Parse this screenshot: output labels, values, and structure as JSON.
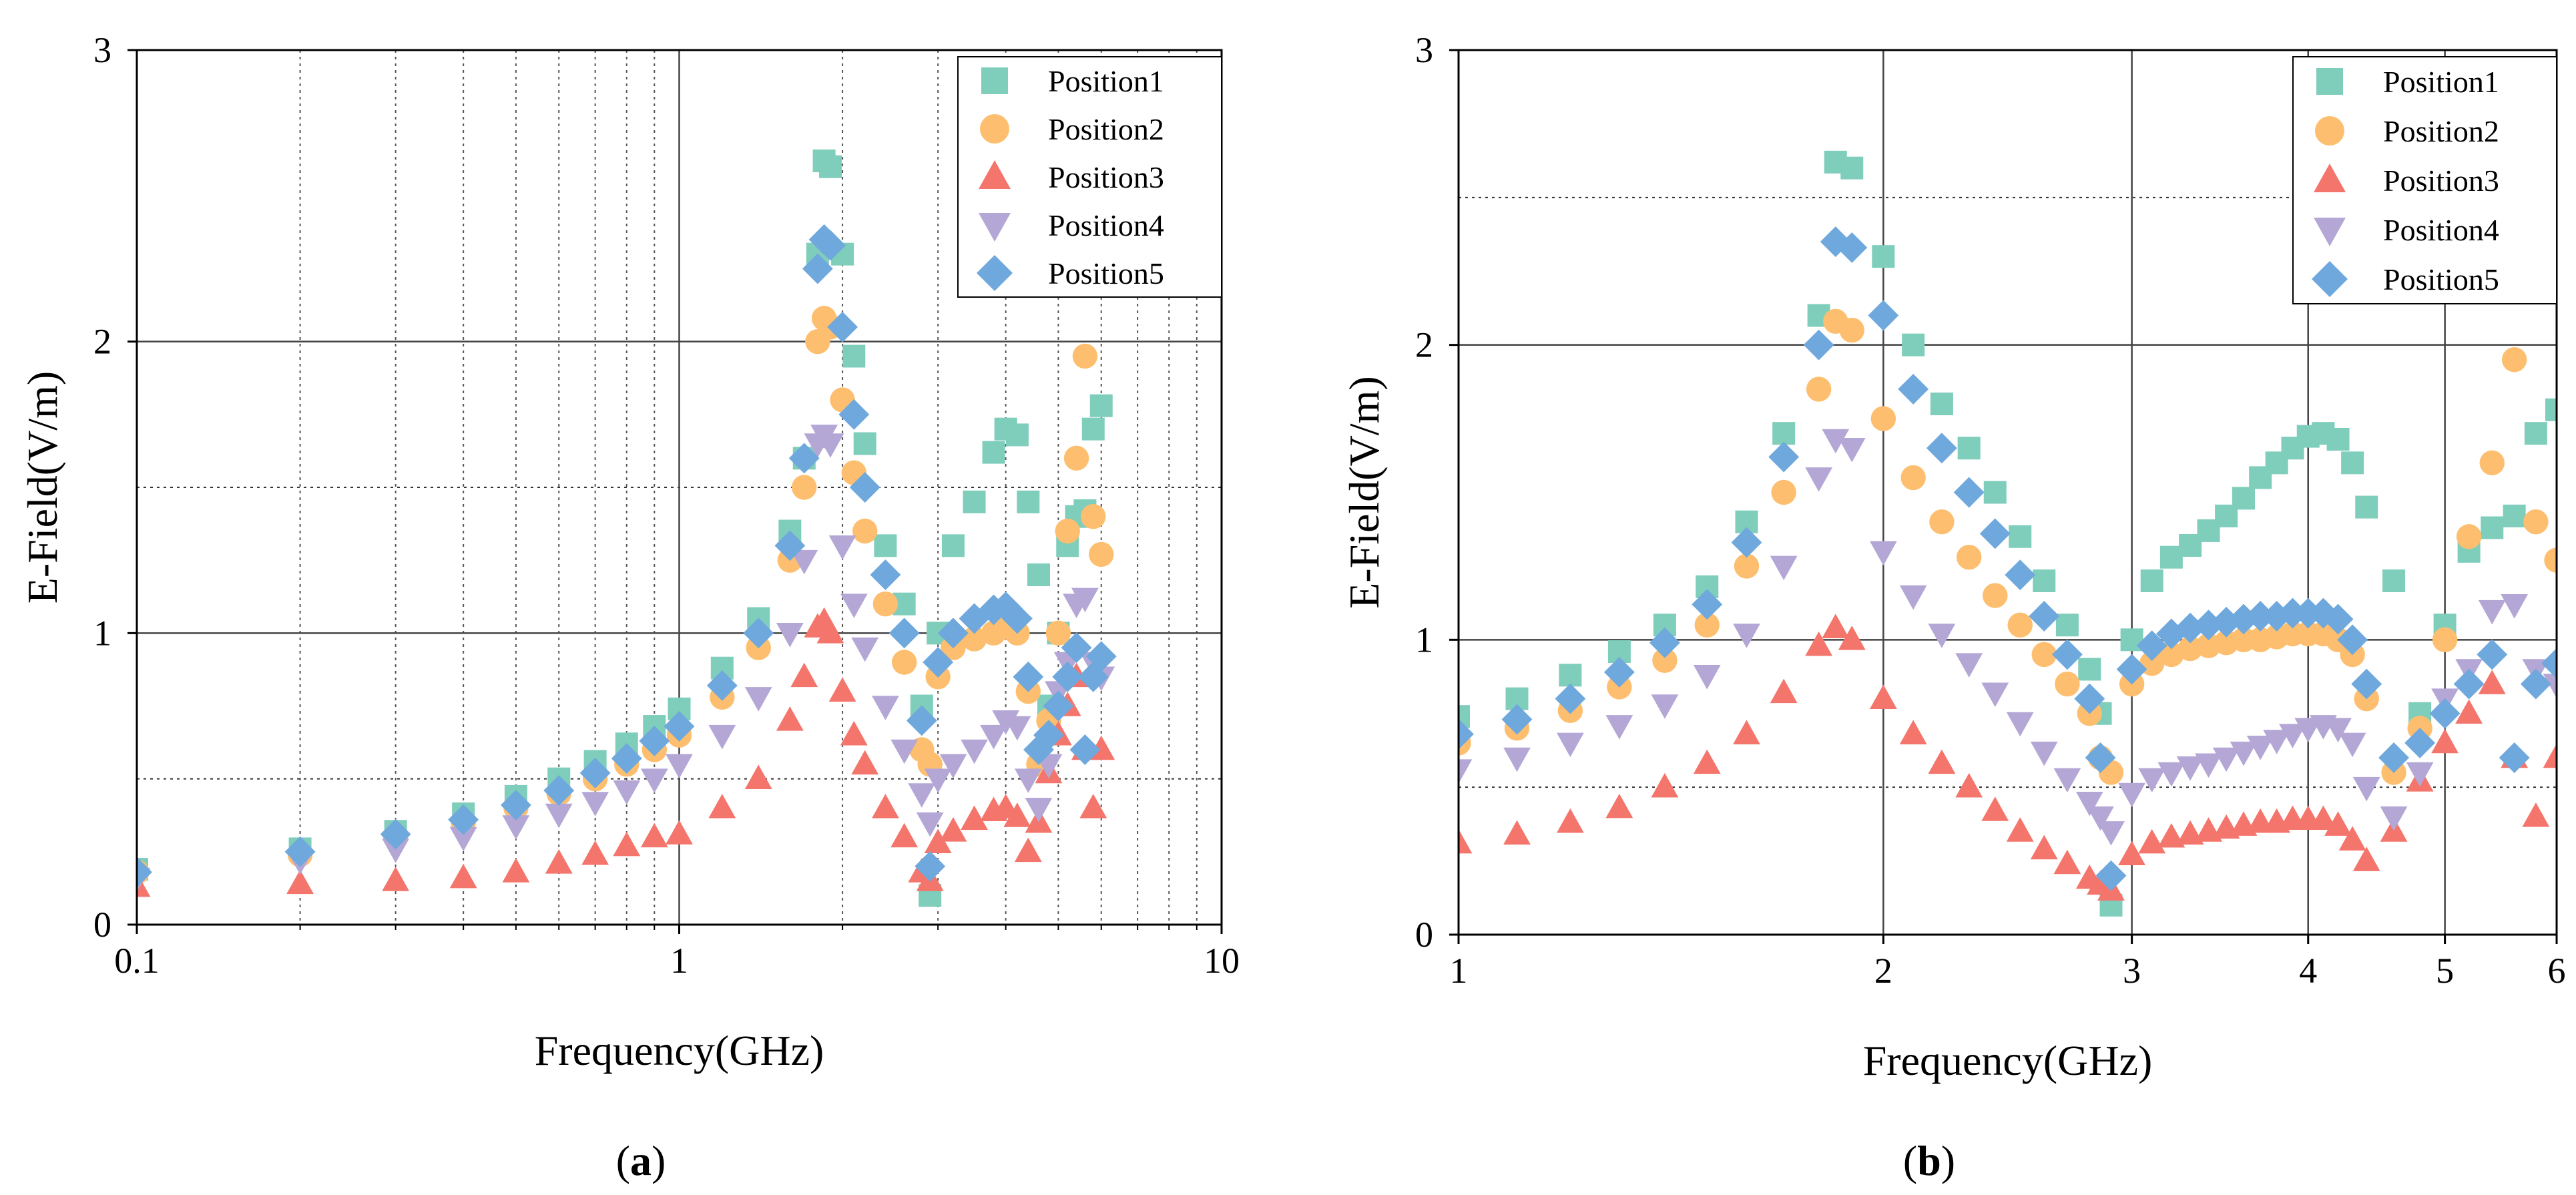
{
  "figure": {
    "captions": [
      {
        "open": "(",
        "letter": "a",
        "close": ")"
      },
      {
        "open": "(",
        "letter": "b",
        "close": ")"
      }
    ]
  },
  "colors": {
    "Position1": "#7fcdbb",
    "Position2": "#fdbf6f",
    "Position3": "#f4756b",
    "Position4": "#b4a7d6",
    "Position5": "#6fa8dc"
  },
  "chart_data": [
    {
      "type": "scatter",
      "title": "",
      "xlabel": "Frequency(GHz)",
      "ylabel": "E-Field(V/m)",
      "xscale": "log",
      "xlim": [
        0.1,
        10
      ],
      "ylim": [
        0,
        3
      ],
      "xticks": [
        0.1,
        1,
        10
      ],
      "xtick_labels": [
        "0.1",
        "1",
        "10"
      ],
      "yticks": [
        0,
        1,
        2,
        3
      ],
      "ytick_labels": [
        "0",
        "1",
        "2",
        "3"
      ],
      "grid": true,
      "legend_position": "top-right",
      "legend": [
        "Position1",
        "Position2",
        "Position3",
        "Position4",
        "Position5"
      ],
      "series": [
        {
          "name": "Position1",
          "marker": "square",
          "x": [
            0.1,
            0.2,
            0.3,
            0.4,
            0.5,
            0.6,
            0.7,
            0.8,
            0.9,
            1.0,
            1.2,
            1.4,
            1.6,
            1.7,
            1.8,
            1.85,
            1.9,
            2.0,
            2.1,
            2.2,
            2.4,
            2.6,
            2.8,
            2.9,
            3.0,
            3.2,
            3.5,
            3.8,
            4.0,
            4.2,
            4.4,
            4.6,
            4.8,
            5.0,
            5.2,
            5.4,
            5.6,
            5.8,
            6.0
          ],
          "y": [
            0.19,
            0.26,
            0.32,
            0.38,
            0.44,
            0.5,
            0.56,
            0.62,
            0.68,
            0.74,
            0.88,
            1.05,
            1.35,
            1.6,
            2.3,
            2.62,
            2.6,
            2.3,
            1.95,
            1.65,
            1.3,
            1.1,
            0.75,
            0.1,
            1.0,
            1.3,
            1.45,
            1.62,
            1.7,
            1.68,
            1.45,
            1.2,
            0.75,
            1.0,
            1.3,
            1.4,
            1.42,
            1.7,
            1.78
          ]
        },
        {
          "name": "Position2",
          "marker": "circle",
          "x": [
            0.1,
            0.2,
            0.3,
            0.4,
            0.5,
            0.6,
            0.7,
            0.8,
            0.9,
            1.0,
            1.2,
            1.4,
            1.6,
            1.7,
            1.8,
            1.85,
            1.9,
            2.0,
            2.1,
            2.2,
            2.4,
            2.6,
            2.8,
            2.9,
            3.0,
            3.2,
            3.5,
            3.8,
            4.0,
            4.2,
            4.4,
            4.6,
            4.8,
            5.0,
            5.2,
            5.4,
            5.6,
            5.8,
            6.0
          ],
          "y": [
            0.18,
            0.24,
            0.3,
            0.35,
            0.4,
            0.45,
            0.5,
            0.55,
            0.6,
            0.65,
            0.78,
            0.95,
            1.25,
            1.5,
            2.0,
            2.08,
            2.05,
            1.8,
            1.55,
            1.35,
            1.1,
            0.9,
            0.6,
            0.55,
            0.85,
            0.95,
            0.98,
            1.0,
            1.02,
            1.0,
            0.8,
            0.55,
            0.7,
            1.0,
            1.35,
            1.6,
            1.95,
            1.4,
            1.27
          ]
        },
        {
          "name": "Position3",
          "marker": "triangle-up",
          "x": [
            0.1,
            0.2,
            0.3,
            0.4,
            0.5,
            0.6,
            0.7,
            0.8,
            0.9,
            1.0,
            1.2,
            1.4,
            1.6,
            1.7,
            1.8,
            1.85,
            1.9,
            2.0,
            2.1,
            2.2,
            2.4,
            2.6,
            2.8,
            2.9,
            3.0,
            3.2,
            3.5,
            3.8,
            4.0,
            4.2,
            4.4,
            4.6,
            4.8,
            5.0,
            5.2,
            5.4,
            5.6,
            5.8,
            6.0
          ],
          "y": [
            0.13,
            0.14,
            0.15,
            0.16,
            0.18,
            0.21,
            0.24,
            0.27,
            0.3,
            0.31,
            0.4,
            0.5,
            0.7,
            0.85,
            1.02,
            1.04,
            1.0,
            0.8,
            0.65,
            0.55,
            0.4,
            0.3,
            0.18,
            0.15,
            0.28,
            0.32,
            0.36,
            0.39,
            0.4,
            0.37,
            0.25,
            0.35,
            0.52,
            0.65,
            0.75,
            0.85,
            0.6,
            0.4,
            0.6
          ]
        },
        {
          "name": "Position4",
          "marker": "triangle-down",
          "x": [
            0.1,
            0.2,
            0.3,
            0.4,
            0.5,
            0.6,
            0.7,
            0.8,
            0.9,
            1.0,
            1.2,
            1.4,
            1.6,
            1.7,
            1.8,
            1.85,
            1.9,
            2.0,
            2.1,
            2.2,
            2.4,
            2.6,
            2.8,
            2.9,
            3.0,
            3.2,
            3.5,
            3.8,
            4.0,
            4.2,
            4.4,
            4.6,
            4.8,
            5.0,
            5.2,
            5.4,
            5.6,
            5.8,
            6.0
          ],
          "y": [
            0.16,
            0.22,
            0.26,
            0.3,
            0.34,
            0.38,
            0.42,
            0.46,
            0.5,
            0.55,
            0.65,
            0.78,
            1.0,
            1.25,
            1.65,
            1.68,
            1.65,
            1.3,
            1.1,
            0.95,
            0.75,
            0.6,
            0.45,
            0.35,
            0.5,
            0.55,
            0.6,
            0.65,
            0.7,
            0.68,
            0.5,
            0.4,
            0.55,
            0.8,
            0.9,
            1.1,
            1.12,
            0.9,
            0.85
          ]
        },
        {
          "name": "Position5",
          "marker": "diamond",
          "x": [
            0.1,
            0.2,
            0.3,
            0.4,
            0.5,
            0.6,
            0.7,
            0.8,
            0.9,
            1.0,
            1.2,
            1.4,
            1.6,
            1.7,
            1.8,
            1.85,
            1.9,
            2.0,
            2.1,
            2.2,
            2.4,
            2.6,
            2.8,
            2.9,
            3.0,
            3.2,
            3.5,
            3.8,
            4.0,
            4.2,
            4.4,
            4.6,
            4.8,
            5.0,
            5.2,
            5.4,
            5.6,
            5.8,
            6.0
          ],
          "y": [
            0.18,
            0.25,
            0.31,
            0.36,
            0.41,
            0.46,
            0.52,
            0.57,
            0.63,
            0.68,
            0.82,
            1.0,
            1.3,
            1.6,
            2.25,
            2.35,
            2.33,
            2.05,
            1.75,
            1.5,
            1.2,
            1.0,
            0.7,
            0.2,
            0.9,
            1.0,
            1.05,
            1.08,
            1.09,
            1.05,
            0.85,
            0.6,
            0.65,
            0.75,
            0.85,
            0.95,
            0.6,
            0.85,
            0.92
          ]
        }
      ]
    },
    {
      "type": "scatter",
      "title": "",
      "xlabel": "Frequency(GHz)",
      "ylabel": "E-Field(V/m)",
      "xscale": "log",
      "xlim": [
        1,
        6
      ],
      "ylim": [
        0,
        3
      ],
      "xticks": [
        1,
        2,
        3,
        4,
        5,
        6
      ],
      "xtick_labels": [
        "1",
        "2",
        "3",
        "4",
        "5",
        "6"
      ],
      "yticks": [
        0,
        1,
        2,
        3
      ],
      "ytick_labels": [
        "0",
        "1",
        "2",
        "3"
      ],
      "grid": true,
      "legend_position": "top-right",
      "legend": [
        "Position1",
        "Position2",
        "Position3",
        "Position4",
        "Position5"
      ],
      "series": [
        {
          "name": "Position1",
          "marker": "square",
          "x": [
            1.0,
            1.1,
            1.2,
            1.3,
            1.4,
            1.5,
            1.6,
            1.7,
            1.8,
            1.85,
            1.9,
            2.0,
            2.1,
            2.2,
            2.3,
            2.4,
            2.5,
            2.6,
            2.7,
            2.8,
            2.85,
            2.9,
            3.0,
            3.1,
            3.2,
            3.3,
            3.4,
            3.5,
            3.6,
            3.7,
            3.8,
            3.9,
            4.0,
            4.1,
            4.2,
            4.3,
            4.4,
            4.6,
            4.8,
            5.0,
            5.2,
            5.4,
            5.6,
            5.8,
            6.0
          ],
          "y": [
            0.74,
            0.8,
            0.88,
            0.96,
            1.05,
            1.18,
            1.4,
            1.7,
            2.1,
            2.62,
            2.6,
            2.3,
            2.0,
            1.8,
            1.65,
            1.5,
            1.35,
            1.2,
            1.05,
            0.9,
            0.75,
            0.1,
            1.0,
            1.2,
            1.28,
            1.32,
            1.37,
            1.42,
            1.48,
            1.55,
            1.6,
            1.65,
            1.69,
            1.7,
            1.68,
            1.6,
            1.45,
            1.2,
            0.75,
            1.05,
            1.3,
            1.38,
            1.42,
            1.7,
            1.78
          ]
        },
        {
          "name": "Position2",
          "marker": "circle",
          "x": [
            1.0,
            1.1,
            1.2,
            1.3,
            1.4,
            1.5,
            1.6,
            1.7,
            1.8,
            1.85,
            1.9,
            2.0,
            2.1,
            2.2,
            2.3,
            2.4,
            2.5,
            2.6,
            2.7,
            2.8,
            2.85,
            2.9,
            3.0,
            3.1,
            3.2,
            3.3,
            3.4,
            3.5,
            3.6,
            3.7,
            3.8,
            3.9,
            4.0,
            4.1,
            4.2,
            4.3,
            4.4,
            4.6,
            4.8,
            5.0,
            5.2,
            5.4,
            5.6,
            5.8,
            6.0
          ],
          "y": [
            0.65,
            0.7,
            0.76,
            0.84,
            0.93,
            1.05,
            1.25,
            1.5,
            1.85,
            2.08,
            2.05,
            1.75,
            1.55,
            1.4,
            1.28,
            1.15,
            1.05,
            0.95,
            0.85,
            0.75,
            0.6,
            0.55,
            0.85,
            0.92,
            0.95,
            0.97,
            0.98,
            0.99,
            1.0,
            1.0,
            1.01,
            1.02,
            1.02,
            1.02,
            1.0,
            0.95,
            0.8,
            0.55,
            0.7,
            1.0,
            1.35,
            1.6,
            1.95,
            1.4,
            1.27
          ]
        },
        {
          "name": "Position3",
          "marker": "triangle-up",
          "x": [
            1.0,
            1.1,
            1.2,
            1.3,
            1.4,
            1.5,
            1.6,
            1.7,
            1.8,
            1.85,
            1.9,
            2.0,
            2.1,
            2.2,
            2.3,
            2.4,
            2.5,
            2.6,
            2.7,
            2.8,
            2.85,
            2.9,
            3.0,
            3.1,
            3.2,
            3.3,
            3.4,
            3.5,
            3.6,
            3.7,
            3.8,
            3.9,
            4.0,
            4.1,
            4.2,
            4.3,
            4.4,
            4.6,
            4.8,
            5.0,
            5.2,
            5.4,
            5.6,
            5.8,
            6.0
          ],
          "y": [
            0.31,
            0.34,
            0.38,
            0.43,
            0.5,
            0.58,
            0.68,
            0.82,
            0.98,
            1.04,
            1.0,
            0.8,
            0.68,
            0.58,
            0.5,
            0.42,
            0.35,
            0.29,
            0.24,
            0.19,
            0.17,
            0.15,
            0.27,
            0.31,
            0.33,
            0.34,
            0.35,
            0.36,
            0.37,
            0.38,
            0.38,
            0.39,
            0.39,
            0.39,
            0.37,
            0.32,
            0.25,
            0.35,
            0.52,
            0.65,
            0.75,
            0.85,
            0.6,
            0.4,
            0.6
          ]
        },
        {
          "name": "Position4",
          "marker": "triangle-down",
          "x": [
            1.0,
            1.1,
            1.2,
            1.3,
            1.4,
            1.5,
            1.6,
            1.7,
            1.8,
            1.85,
            1.9,
            2.0,
            2.1,
            2.2,
            2.3,
            2.4,
            2.5,
            2.6,
            2.7,
            2.8,
            2.85,
            2.9,
            3.0,
            3.1,
            3.2,
            3.3,
            3.4,
            3.5,
            3.6,
            3.7,
            3.8,
            3.9,
            4.0,
            4.1,
            4.2,
            4.3,
            4.4,
            4.6,
            4.8,
            5.0,
            5.2,
            5.4,
            5.6,
            5.8,
            6.0
          ],
          "y": [
            0.56,
            0.6,
            0.65,
            0.71,
            0.78,
            0.88,
            1.02,
            1.25,
            1.55,
            1.68,
            1.65,
            1.3,
            1.15,
            1.02,
            0.92,
            0.82,
            0.72,
            0.62,
            0.53,
            0.45,
            0.4,
            0.35,
            0.48,
            0.53,
            0.55,
            0.57,
            0.58,
            0.6,
            0.62,
            0.64,
            0.66,
            0.68,
            0.7,
            0.71,
            0.7,
            0.65,
            0.5,
            0.4,
            0.55,
            0.8,
            0.9,
            1.1,
            1.12,
            0.9,
            0.85
          ]
        },
        {
          "name": "Position5",
          "marker": "diamond",
          "x": [
            1.0,
            1.1,
            1.2,
            1.3,
            1.4,
            1.5,
            1.6,
            1.7,
            1.8,
            1.85,
            1.9,
            2.0,
            2.1,
            2.2,
            2.3,
            2.4,
            2.5,
            2.6,
            2.7,
            2.8,
            2.85,
            2.9,
            3.0,
            3.1,
            3.2,
            3.3,
            3.4,
            3.5,
            3.6,
            3.7,
            3.8,
            3.9,
            4.0,
            4.1,
            4.2,
            4.3,
            4.4,
            4.6,
            4.8,
            5.0,
            5.2,
            5.4,
            5.6,
            5.8,
            6.0
          ],
          "y": [
            0.68,
            0.73,
            0.8,
            0.89,
            0.99,
            1.12,
            1.33,
            1.62,
            2.0,
            2.35,
            2.33,
            2.1,
            1.85,
            1.65,
            1.5,
            1.36,
            1.22,
            1.08,
            0.95,
            0.8,
            0.6,
            0.2,
            0.9,
            0.98,
            1.02,
            1.04,
            1.05,
            1.06,
            1.07,
            1.08,
            1.08,
            1.09,
            1.09,
            1.09,
            1.07,
            1.0,
            0.85,
            0.6,
            0.65,
            0.75,
            0.85,
            0.95,
            0.6,
            0.85,
            0.92
          ]
        }
      ]
    }
  ]
}
